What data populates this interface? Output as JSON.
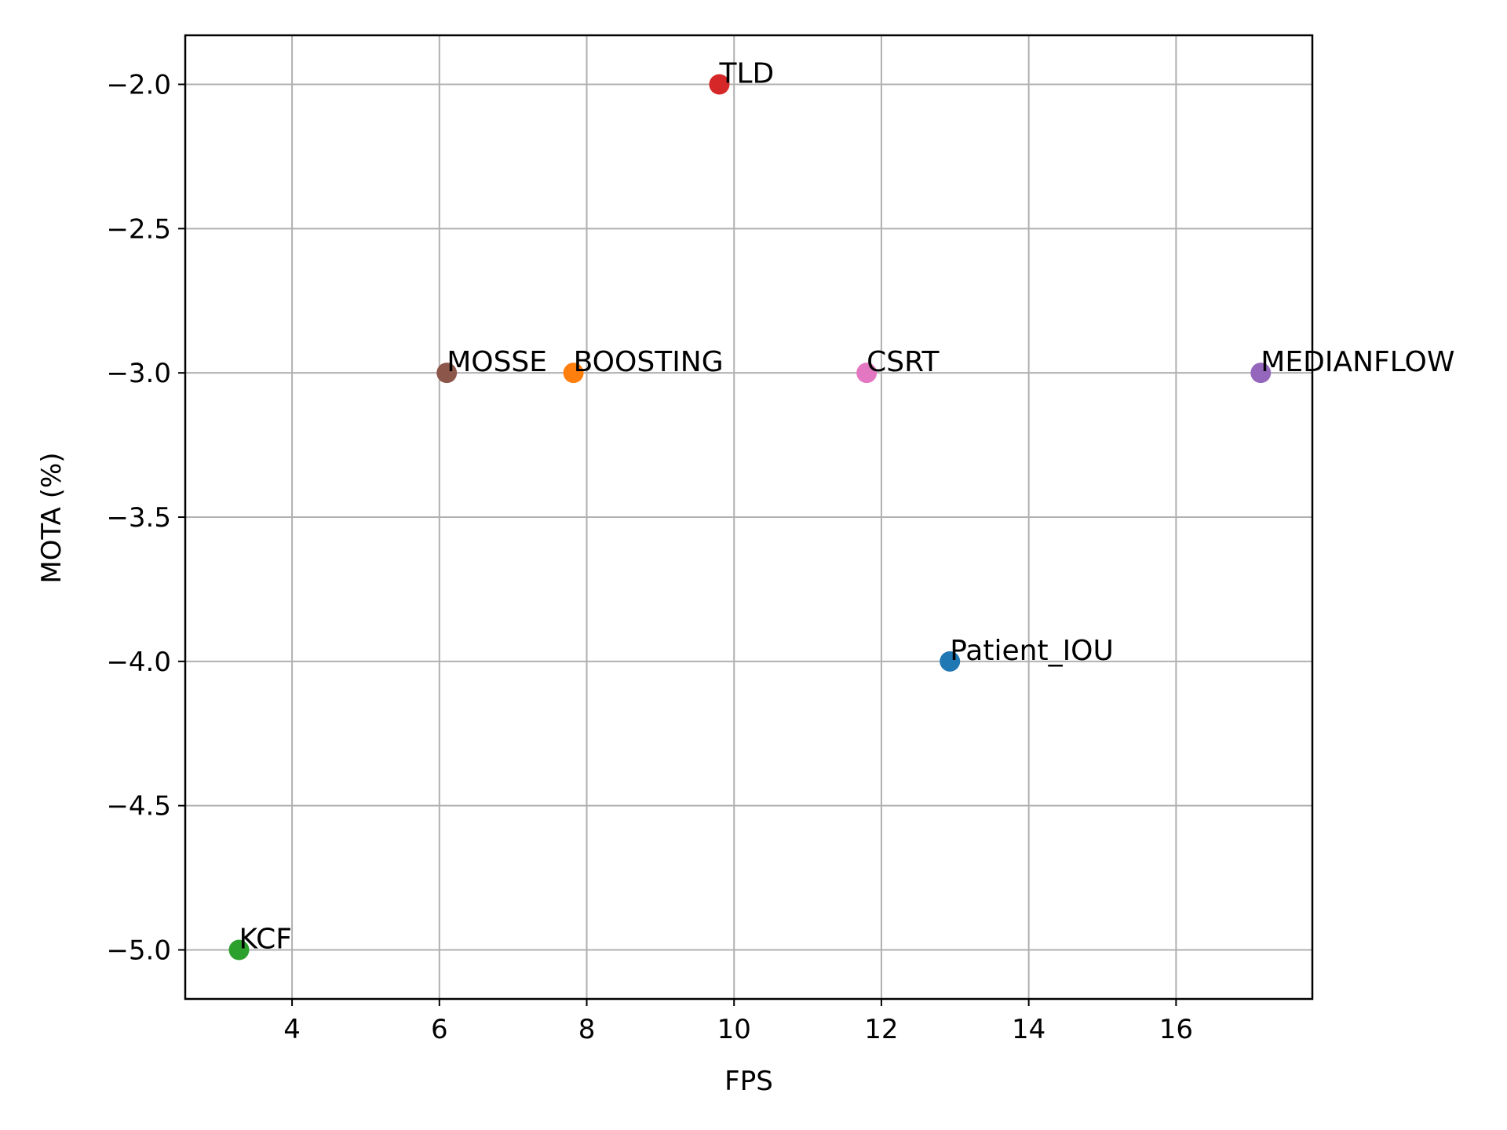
{
  "chart_data": {
    "type": "scatter",
    "xlabel": "FPS",
    "ylabel": "MOTA (%)",
    "xlim": [
      2.55,
      17.85
    ],
    "ylim": [
      -5.17,
      -1.83
    ],
    "grid": true,
    "xticks": [
      4,
      6,
      8,
      10,
      12,
      14,
      16
    ],
    "xtick_labels": [
      "4",
      "6",
      "8",
      "10",
      "12",
      "14",
      "16"
    ],
    "yticks": [
      -2.0,
      -2.5,
      -3.0,
      -3.5,
      -4.0,
      -4.5,
      -5.0
    ],
    "ytick_labels": [
      "−2.0",
      "−2.5",
      "−3.0",
      "−3.5",
      "−4.0",
      "−4.5",
      "−5.0"
    ],
    "points": [
      {
        "label": "Patient_IOU",
        "x": 12.93,
        "y": -4.0,
        "color": "#1f77b4"
      },
      {
        "label": "BOOSTING",
        "x": 7.82,
        "y": -3.0,
        "color": "#ff7f0e"
      },
      {
        "label": "KCF",
        "x": 3.28,
        "y": -5.0,
        "color": "#2ca02c"
      },
      {
        "label": "TLD",
        "x": 9.8,
        "y": -2.0,
        "color": "#d62728"
      },
      {
        "label": "MEDIANFLOW",
        "x": 17.15,
        "y": -3.0,
        "color": "#9467bd"
      },
      {
        "label": "MOSSE",
        "x": 6.1,
        "y": -3.0,
        "color": "#8c564b"
      },
      {
        "label": "CSRT",
        "x": 11.8,
        "y": -3.0,
        "color": "#e377c2"
      }
    ]
  }
}
